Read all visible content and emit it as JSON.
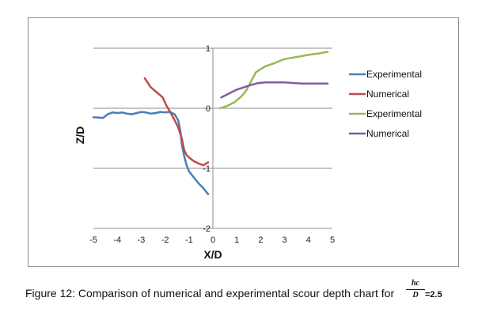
{
  "chart_data": {
    "type": "line",
    "title": "",
    "xlabel": "X/D",
    "ylabel": "Z/D",
    "xlim": [
      -5,
      5
    ],
    "ylim": [
      -2,
      1
    ],
    "xticks": [
      "-5",
      "-4",
      "-3",
      "-2",
      "-1",
      "0",
      "1",
      "2",
      "3",
      "4",
      "5"
    ],
    "yticks": [
      "1",
      "0",
      "-1",
      "-2"
    ],
    "grid": "horizontal",
    "legend_position": "right",
    "series": [
      {
        "name": "Experimental",
        "color": "#4a7ebb",
        "x": [
          -5.0,
          -4.6,
          -4.4,
          -4.2,
          -4.0,
          -3.8,
          -3.6,
          -3.4,
          -3.2,
          -3.0,
          -2.8,
          -2.6,
          -2.4,
          -2.2,
          -2.0,
          -1.8,
          -1.6,
          -1.45,
          -1.35,
          -1.3,
          -1.2,
          -1.1,
          -1.0,
          -0.8,
          -0.6,
          -0.4,
          -0.2
        ],
        "y": [
          -0.15,
          -0.16,
          -0.1,
          -0.07,
          -0.08,
          -0.07,
          -0.09,
          -0.1,
          -0.08,
          -0.06,
          -0.07,
          -0.09,
          -0.08,
          -0.06,
          -0.07,
          -0.06,
          -0.1,
          -0.2,
          -0.4,
          -0.6,
          -0.8,
          -0.95,
          -1.05,
          -1.15,
          -1.25,
          -1.33,
          -1.43
        ]
      },
      {
        "name": "Numerical",
        "color": "#be4b48",
        "x": [
          -2.85,
          -2.6,
          -2.3,
          -2.1,
          -1.95,
          -1.8,
          -1.6,
          -1.45,
          -1.3,
          -1.2,
          -1.1,
          -1.0,
          -0.8,
          -0.6,
          -0.4,
          -0.2
        ],
        "y": [
          0.5,
          0.35,
          0.25,
          0.18,
          0.05,
          -0.05,
          -0.2,
          -0.32,
          -0.5,
          -0.7,
          -0.78,
          -0.82,
          -0.88,
          -0.92,
          -0.95,
          -0.9
        ]
      },
      {
        "name": "Experimental",
        "color": "#98b954",
        "x": [
          0.3,
          0.6,
          0.9,
          1.2,
          1.4,
          1.6,
          1.8,
          2.0,
          2.2,
          2.5,
          2.8,
          3.0,
          3.3,
          3.6,
          4.0,
          4.4,
          4.8
        ],
        "y": [
          0.0,
          0.04,
          0.1,
          0.2,
          0.3,
          0.45,
          0.6,
          0.65,
          0.7,
          0.74,
          0.79,
          0.82,
          0.84,
          0.86,
          0.89,
          0.91,
          0.94
        ]
      },
      {
        "name": "Numerical",
        "color": "#7d5fa0",
        "x": [
          0.35,
          0.7,
          1.0,
          1.3,
          1.6,
          1.9,
          2.2,
          2.6,
          3.0,
          3.4,
          3.8,
          4.2,
          4.6,
          4.8
        ],
        "y": [
          0.18,
          0.25,
          0.31,
          0.35,
          0.39,
          0.42,
          0.43,
          0.43,
          0.43,
          0.42,
          0.41,
          0.41,
          0.41,
          0.41
        ]
      }
    ]
  },
  "caption": {
    "text": "Figure 12: Comparison of numerical and experimental scour depth chart for",
    "fraction_numerator": "hc",
    "fraction_denominator": "D",
    "fraction_value": "=2.5"
  }
}
